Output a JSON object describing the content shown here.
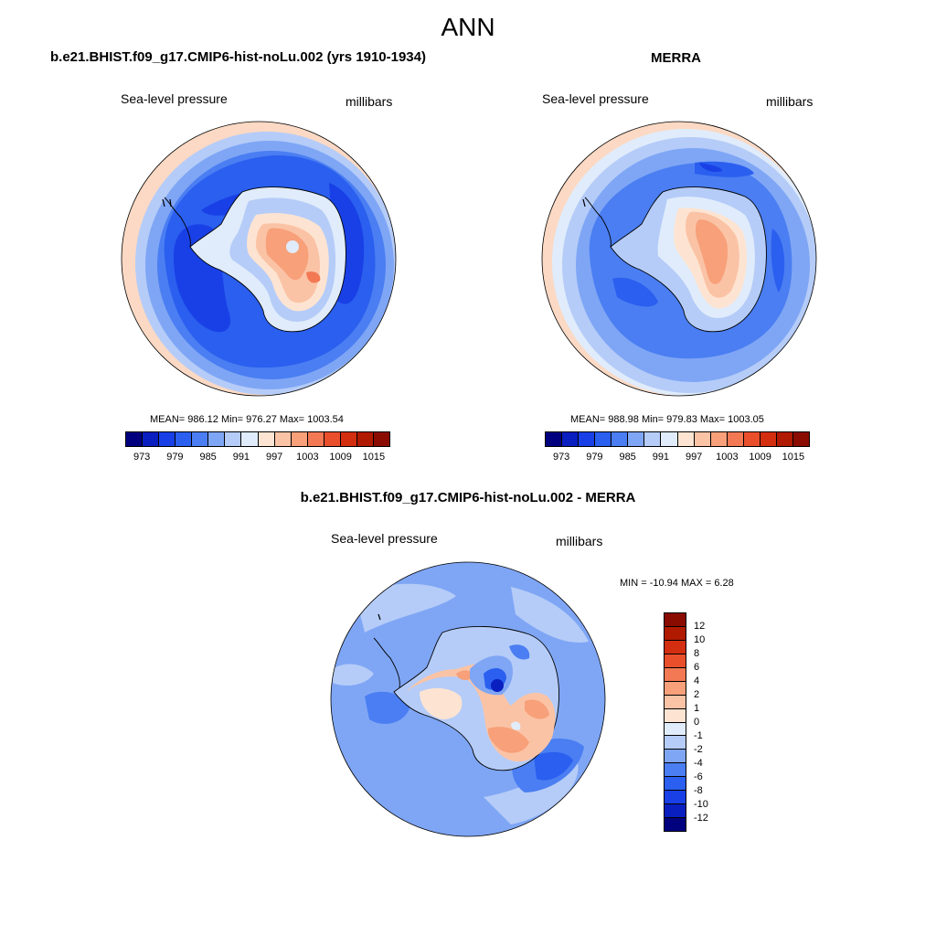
{
  "figure": {
    "title": "ANN"
  },
  "panels": [
    {
      "title": "b.e21.BHIST.f09_g17.CMIP6-hist-noLu.002 (yrs 1910-1934)",
      "variable": "Sea-level pressure",
      "units": "millibars",
      "stats": "MEAN= 986.12  Min= 976.27  Max= 1003.54"
    },
    {
      "title": "MERRA",
      "variable": "Sea-level pressure",
      "units": "millibars",
      "stats": "MEAN= 988.98  Min= 979.83  Max= 1003.05"
    },
    {
      "title": "b.e21.BHIST.f09_g17.CMIP6-hist-noLu.002 - MERRA",
      "variable": "Sea-level pressure",
      "units": "millibars",
      "stats": "MIN = -10.94 MAX =   6.28"
    }
  ],
  "colorbar_abs": {
    "labels": [
      "973",
      "979",
      "985",
      "991",
      "997",
      "1003",
      "1009",
      "1015"
    ],
    "colors": [
      "#00007f",
      "#0a1fbf",
      "#1940e6",
      "#2a5fef",
      "#4a7ef2",
      "#7fa6f5",
      "#b5ccf8",
      "#e0ecfb",
      "#fde4d2",
      "#fbc3a5",
      "#f7a07a",
      "#f27954",
      "#ea4f2c",
      "#d42e10",
      "#b01a00",
      "#8a0c00"
    ]
  },
  "colorbar_diff": {
    "labels": [
      "12",
      "10",
      "8",
      "6",
      "4",
      "2",
      "1",
      "0",
      "-1",
      "-2",
      "-4",
      "-6",
      "-8",
      "-10",
      "-12"
    ],
    "colors": [
      "#8a0c00",
      "#b01a00",
      "#d42e10",
      "#ea4f2c",
      "#f27954",
      "#f7a07a",
      "#fbc3a5",
      "#fde4d2",
      "#e0ecfb",
      "#b5ccf8",
      "#7fa6f5",
      "#4a7ef2",
      "#2a5fef",
      "#1940e6",
      "#0a1fbf",
      "#00007f"
    ]
  },
  "palette": {
    "deep_blue": "#1f4fe0",
    "mid_blue": "#3d6cf0",
    "light_blue": "#7fa6f5",
    "pale_blue": "#b5ccf8",
    "near_white": "#e0ecfb",
    "pale_red": "#fbc3a5",
    "light_red": "#f7a07a",
    "mid_red": "#f27954"
  }
}
